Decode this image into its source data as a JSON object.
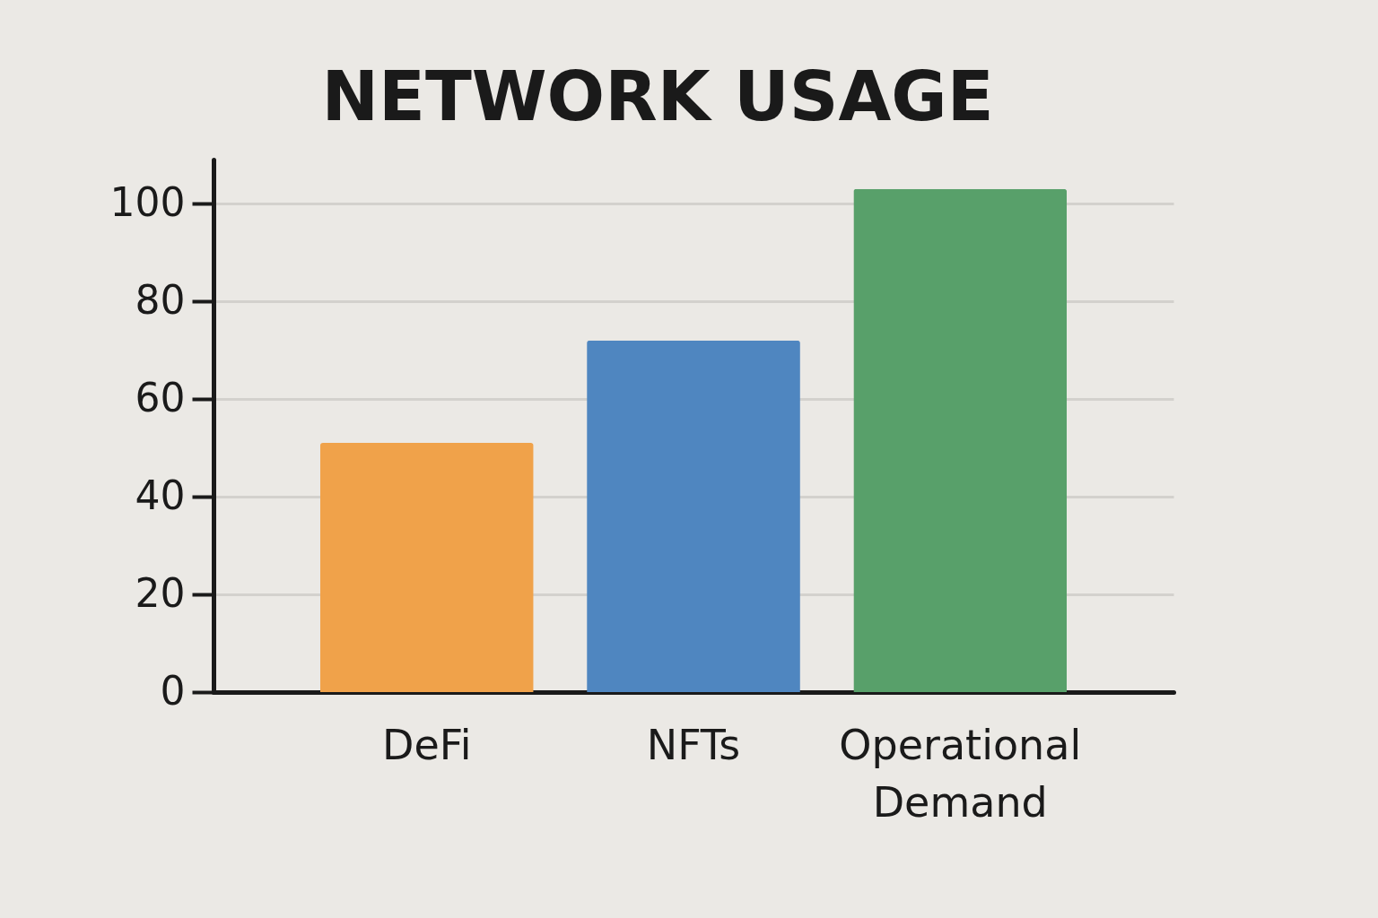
{
  "chart_data": {
    "type": "bar",
    "title": "NETWORK USAGE",
    "categories": [
      "DeFi",
      "NFTs",
      "Operational Demand"
    ],
    "values": [
      51,
      72,
      103
    ],
    "colors": [
      "#f0a24a",
      "#4f86c0",
      "#58a06a"
    ],
    "ylim": [
      0,
      109
    ],
    "yticks": [
      0,
      20,
      40,
      60,
      80,
      100
    ],
    "grid": "y"
  }
}
